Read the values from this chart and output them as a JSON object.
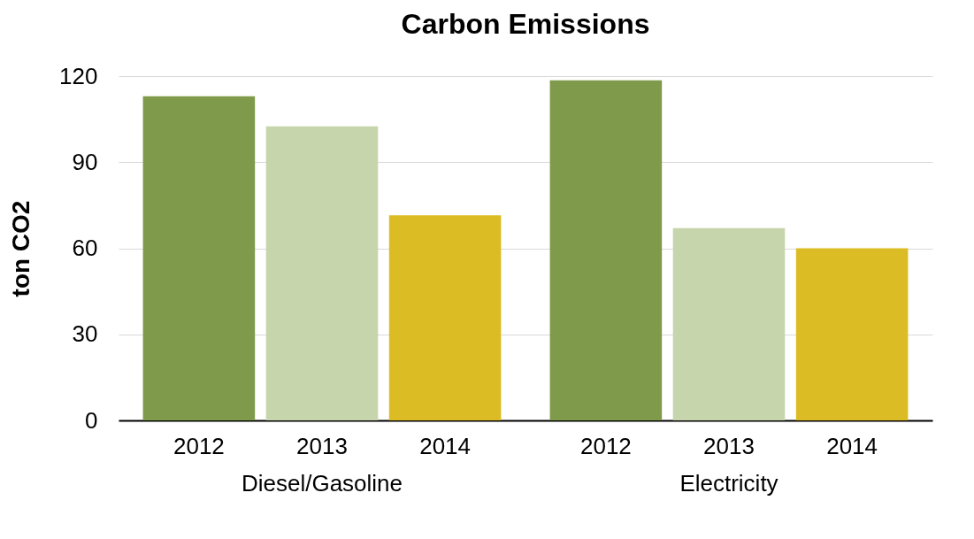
{
  "chart_data": {
    "type": "bar",
    "title": "Carbon Emissions",
    "ylabel": "ton CO2",
    "categories": [
      "Diesel/Gasoline",
      "Electricity"
    ],
    "series": [
      {
        "name": "2012",
        "color": "#7f9a4a",
        "values": [
          113,
          118.5
        ]
      },
      {
        "name": "2013",
        "color": "#c6d5ac",
        "values": [
          102.5,
          67
        ]
      },
      {
        "name": "2014",
        "color": "#dcbc24",
        "values": [
          71.5,
          60
        ]
      }
    ],
    "ylim": [
      0,
      120
    ],
    "yticks": [
      0,
      30,
      60,
      90,
      120
    ],
    "grid": "y"
  }
}
